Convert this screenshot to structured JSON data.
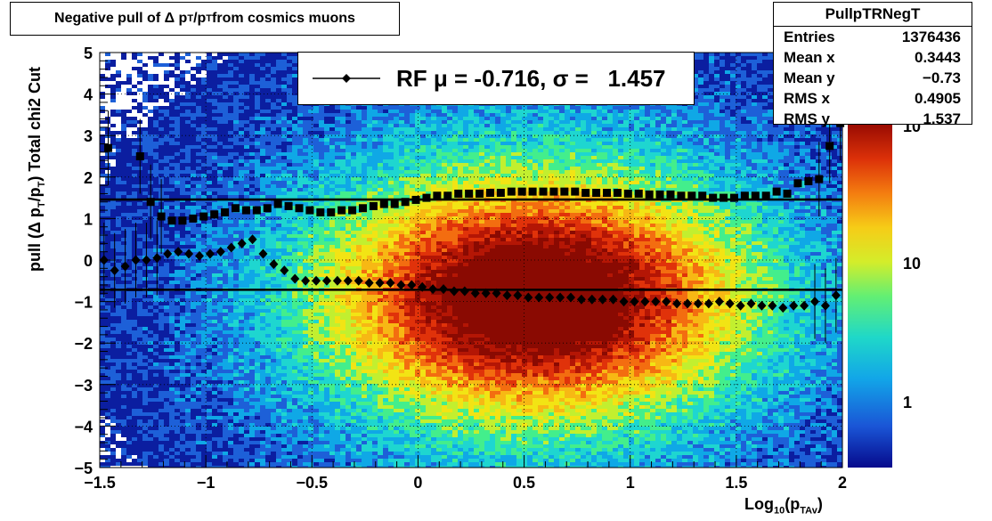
{
  "chart_data": {
    "type": "heatmap",
    "title": "Negative pull of Δ p_T/p_T from cosmics muons",
    "title_parts": {
      "pre": "Negative pull of Δ p",
      "s1": "T",
      "mid": "/p",
      "s2": "T",
      "post": " from cosmics muons"
    },
    "xlabel_parts": {
      "pre": "Log",
      "s1": "10",
      "mid": "(p",
      "s2": "TAv",
      "post": ")"
    },
    "ylabel_parts": {
      "pre": "pull (Δ p",
      "s1": "T",
      "mid": "/p",
      "s2": "T",
      "post": ")  Total chi2 Cut"
    },
    "xlim": [
      -1.5,
      2
    ],
    "ylim": [
      -5,
      5
    ],
    "x_ticks": [
      "−1.5",
      "−1",
      "−0.5",
      "0",
      "0.5",
      "1",
      "1.5",
      "2"
    ],
    "y_ticks": [
      "−5",
      "−4",
      "−3",
      "−2",
      "−1",
      "0",
      "1",
      "2",
      "3",
      "4",
      "5"
    ],
    "z_scale": "log",
    "z_ticks": [
      "1",
      "10",
      "10"
    ],
    "palette": [
      "#0b1ea0",
      "#1d60d8",
      "#0fa8e6",
      "#1ed6d0",
      "#43ee8c",
      "#c2ef2f",
      "#f2e414",
      "#f7b814",
      "#f36d10",
      "#e0320a",
      "#b41605",
      "#8a0a02"
    ],
    "grid": true,
    "hist_peak_x": 0.55,
    "hist_peak_y": -0.9,
    "series": [
      {
        "name": "RMS",
        "marker": "square",
        "x": [
          -1.46,
          -1.41,
          -1.36,
          -1.31,
          -1.26,
          -1.21,
          -1.16,
          -1.11,
          -1.06,
          -1.01,
          -0.96,
          -0.91,
          -0.86,
          -0.81,
          -0.76,
          -0.71,
          -0.66,
          -0.61,
          -0.56,
          -0.51,
          -0.46,
          -0.41,
          -0.36,
          -0.31,
          -0.26,
          -0.21,
          -0.16,
          -0.11,
          -0.06,
          -0.01,
          0.04,
          0.09,
          0.14,
          0.19,
          0.24,
          0.29,
          0.34,
          0.39,
          0.44,
          0.49,
          0.54,
          0.59,
          0.64,
          0.69,
          0.74,
          0.79,
          0.84,
          0.89,
          0.94,
          0.99,
          1.04,
          1.09,
          1.14,
          1.19,
          1.24,
          1.29,
          1.34,
          1.39,
          1.44,
          1.49,
          1.54,
          1.59,
          1.64,
          1.69,
          1.74,
          1.79,
          1.84,
          1.89,
          1.94,
          1.99
        ],
        "values": [
          2.7,
          null,
          null,
          2.5,
          1.4,
          1.05,
          0.95,
          0.95,
          1.0,
          1.05,
          1.1,
          1.15,
          1.25,
          1.2,
          1.2,
          1.25,
          1.35,
          1.3,
          1.25,
          1.2,
          1.15,
          1.15,
          1.2,
          1.2,
          1.25,
          1.3,
          1.35,
          1.35,
          1.4,
          1.45,
          1.5,
          1.55,
          1.55,
          1.6,
          1.6,
          1.6,
          1.62,
          1.62,
          1.65,
          1.65,
          1.65,
          1.65,
          1.65,
          1.65,
          1.65,
          1.62,
          1.62,
          1.62,
          1.62,
          1.6,
          1.6,
          1.58,
          1.58,
          1.58,
          1.55,
          1.55,
          1.55,
          1.5,
          1.5,
          1.5,
          1.55,
          1.55,
          1.55,
          1.65,
          1.6,
          1.85,
          1.9,
          1.95,
          2.75,
          3.3
        ]
      },
      {
        "name": "Mean",
        "marker": "diamond",
        "x": [
          -1.48,
          -1.43,
          -1.38,
          -1.33,
          -1.28,
          -1.23,
          -1.18,
          -1.13,
          -1.08,
          -1.03,
          -0.98,
          -0.93,
          -0.88,
          -0.83,
          -0.78,
          -0.73,
          -0.68,
          -0.63,
          -0.58,
          -0.53,
          -0.48,
          -0.43,
          -0.38,
          -0.33,
          -0.28,
          -0.23,
          -0.18,
          -0.13,
          -0.08,
          -0.03,
          0.02,
          0.07,
          0.12,
          0.17,
          0.22,
          0.27,
          0.32,
          0.37,
          0.42,
          0.47,
          0.52,
          0.57,
          0.62,
          0.67,
          0.72,
          0.77,
          0.82,
          0.87,
          0.92,
          0.97,
          1.02,
          1.07,
          1.12,
          1.17,
          1.22,
          1.27,
          1.32,
          1.37,
          1.42,
          1.47,
          1.52,
          1.57,
          1.62,
          1.67,
          1.72,
          1.77,
          1.82,
          1.87,
          1.92,
          1.97
        ],
        "values": [
          0.0,
          -0.25,
          -0.15,
          0.0,
          0.0,
          0.05,
          0.15,
          0.2,
          0.15,
          0.1,
          0.15,
          0.2,
          0.3,
          0.4,
          0.5,
          0.15,
          -0.1,
          -0.25,
          -0.45,
          -0.5,
          -0.5,
          -0.5,
          -0.5,
          -0.5,
          -0.5,
          -0.55,
          -0.55,
          -0.55,
          -0.6,
          -0.6,
          -0.65,
          -0.7,
          -0.7,
          -0.75,
          -0.75,
          -0.8,
          -0.8,
          -0.8,
          -0.85,
          -0.85,
          -0.9,
          -0.9,
          -0.9,
          -0.9,
          -0.9,
          -0.95,
          -0.95,
          -0.95,
          -0.95,
          -1.0,
          -1.0,
          -1.0,
          -1.0,
          -1.0,
          -1.05,
          -1.05,
          -1.05,
          -1.05,
          -1.0,
          -1.05,
          -1.1,
          -1.05,
          -1.1,
          -1.1,
          -1.15,
          -1.1,
          -1.1,
          -1.0,
          -1.1,
          -0.85
        ]
      }
    ],
    "hlines": [
      {
        "y": 1.457,
        "name": "sigma"
      },
      {
        "y": -0.716,
        "name": "mu"
      }
    ]
  },
  "legend": {
    "label": "RF μ = -0.716, σ =   1.457"
  },
  "stats": {
    "title": "PullpTRNegT",
    "rows": [
      {
        "label": "Entries",
        "value": "1376436"
      },
      {
        "label": "Mean x",
        "value": "0.3443"
      },
      {
        "label": "Mean y",
        "value": "−0.73"
      },
      {
        "label": "RMS x",
        "value": "0.4905"
      },
      {
        "label": "RMS y",
        "value": "1.537"
      }
    ]
  }
}
